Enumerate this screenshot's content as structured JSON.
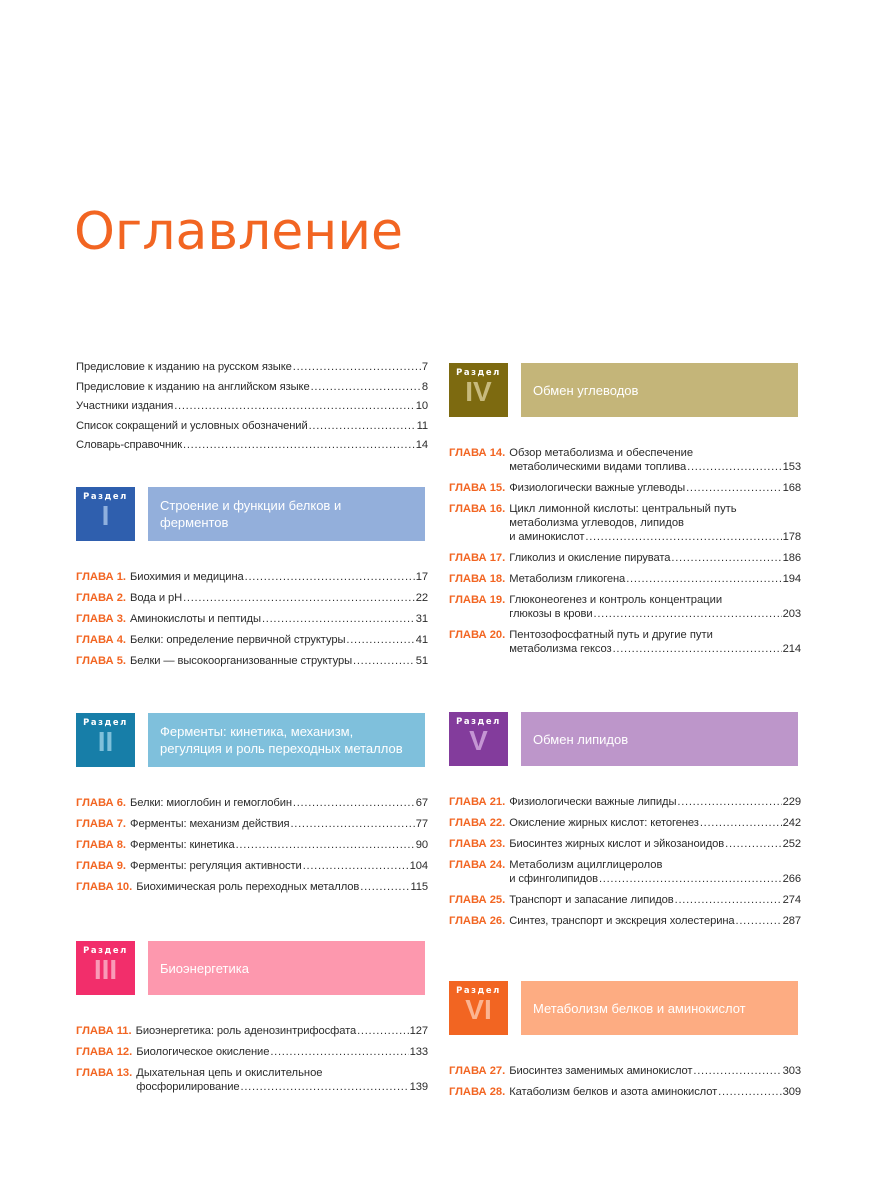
{
  "page_title": "Оглавление",
  "section_word": "Раздел",
  "chapter_prefix": "ГЛАВА",
  "accent_color": "#f26522",
  "front_matter": [
    {
      "title": "Предисловие к изданию на русском языке",
      "page": "7"
    },
    {
      "title": "Предисловие к изданию на английском языке",
      "page": "8"
    },
    {
      "title": "Участники издания",
      "page": "10"
    },
    {
      "title": "Список сокращений и условных обозначений",
      "page": "11"
    },
    {
      "title": "Словарь-справочник",
      "page": "14"
    }
  ],
  "sections": [
    {
      "roman": "I",
      "title": "Строение и функции белков и ферментов",
      "num_color": "#2f5fae",
      "roman_color": "#8fb0de",
      "title_color": "#93afdb",
      "chapters": [
        {
          "label": "ГЛАВА 1.",
          "lines": [
            "Биохимия и медицина"
          ],
          "page": "17"
        },
        {
          "label": "ГЛАВА 2.",
          "lines": [
            "Вода и pH"
          ],
          "page": "22"
        },
        {
          "label": "ГЛАВА 3.",
          "lines": [
            "Аминокислоты и пептиды"
          ],
          "page": "31"
        },
        {
          "label": "ГЛАВА 4.",
          "lines": [
            "Белки: определение первичной структуры"
          ],
          "page": "41"
        },
        {
          "label": "ГЛАВА 5.",
          "lines": [
            "Белки — высокоорганизованные структуры"
          ],
          "page": "51"
        }
      ]
    },
    {
      "roman": "II",
      "title": "Ферменты: кинетика, механизм, регуляция и роль переходных металлов",
      "num_color": "#177ea8",
      "roman_color": "#7fc0da",
      "title_color": "#7fc0dc",
      "chapters": [
        {
          "label": "ГЛАВА 6.",
          "lines": [
            "Белки: миоглобин и гемоглобин"
          ],
          "page": "67"
        },
        {
          "label": "ГЛАВА 7.",
          "lines": [
            "Ферменты: механизм действия"
          ],
          "page": "77"
        },
        {
          "label": "ГЛАВА 8.",
          "lines": [
            "Ферменты: кинетика"
          ],
          "page": "90"
        },
        {
          "label": "ГЛАВА 9.",
          "lines": [
            "Ферменты: регуляция активности"
          ],
          "page": "104"
        },
        {
          "label": "ГЛАВА 10.",
          "lines": [
            "Биохимическая роль переходных металлов"
          ],
          "page": "115"
        }
      ]
    },
    {
      "roman": "III",
      "title": "Биоэнергетика",
      "num_color": "#f22e6b",
      "roman_color": "#f99ab7",
      "title_color": "#fd98ae",
      "chapters": [
        {
          "label": "ГЛАВА 11.",
          "lines": [
            "Биоэнергетика: роль аденозинтрифосфата"
          ],
          "page": "127"
        },
        {
          "label": "ГЛАВА 12.",
          "lines": [
            "Биологическое окисление"
          ],
          "page": "133"
        },
        {
          "label": "ГЛАВА 13.",
          "lines": [
            "Дыхательная цепь и окислительное",
            "фосфорилирование"
          ],
          "page": "139"
        }
      ]
    },
    {
      "roman": "IV",
      "title": "Обмен углеводов",
      "num_color": "#7d6a10",
      "roman_color": "#c7ba7d",
      "title_color": "#c4b579",
      "chapters": [
        {
          "label": "ГЛАВА 14.",
          "lines": [
            "Обзор метаболизма и обеспечение",
            "метаболическими видами топлива"
          ],
          "page": "153"
        },
        {
          "label": "ГЛАВА 15.",
          "lines": [
            "Физиологически важные углеводы"
          ],
          "page": "168"
        },
        {
          "label": "ГЛАВА 16.",
          "lines": [
            "Цикл лимонной кислоты: центральный путь",
            "метаболизма углеводов, липидов",
            "и аминокислот"
          ],
          "page": "178"
        },
        {
          "label": "ГЛАВА 17.",
          "lines": [
            "Гликолиз и окисление пирувата"
          ],
          "page": "186"
        },
        {
          "label": "ГЛАВА 18.",
          "lines": [
            "Метаболизм гликогена"
          ],
          "page": "194"
        },
        {
          "label": "ГЛАВА 19.",
          "lines": [
            "Глюконеогенез и контроль концентрации",
            "глюкозы в крови"
          ],
          "page": "203"
        },
        {
          "label": "ГЛАВА 20.",
          "lines": [
            "Пентозофосфатный путь и другие пути",
            "метаболизма гексоз"
          ],
          "page": "214"
        }
      ]
    },
    {
      "roman": "V",
      "title": "Обмен липидов",
      "num_color": "#833c9c",
      "roman_color": "#c495d3",
      "title_color": "#bd96ca",
      "chapters": [
        {
          "label": "ГЛАВА 21.",
          "lines": [
            "Физиологически важные липиды"
          ],
          "page": "229"
        },
        {
          "label": "ГЛАВА 22.",
          "lines": [
            "Окисление жирных кислот: кетогенез"
          ],
          "page": "242"
        },
        {
          "label": "ГЛАВА 23.",
          "lines": [
            "Биосинтез жирных кислот и эйкозаноидов"
          ],
          "page": "252"
        },
        {
          "label": "ГЛАВА 24.",
          "lines": [
            "Метаболизм ацилглицеролов",
            "и сфинголипидов"
          ],
          "page": "266"
        },
        {
          "label": "ГЛАВА 25.",
          "lines": [
            "Транспорт и запасание липидов"
          ],
          "page": "274"
        },
        {
          "label": "ГЛАВА 26.",
          "lines": [
            "Синтез, транспорт и экскреция холестерина"
          ],
          "page": "287"
        }
      ]
    },
    {
      "roman": "VI",
      "title": "Метаболизм белков и аминокислот",
      "num_color": "#f26522",
      "roman_color": "#fbb491",
      "title_color": "#fdac82",
      "chapters": [
        {
          "label": "ГЛАВА 27.",
          "lines": [
            "Биосинтез заменимых аминокислот"
          ],
          "page": "303"
        },
        {
          "label": "ГЛАВА 28.",
          "lines": [
            "Катаболизм белков и азота аминокислот"
          ],
          "page": "309"
        }
      ]
    }
  ]
}
